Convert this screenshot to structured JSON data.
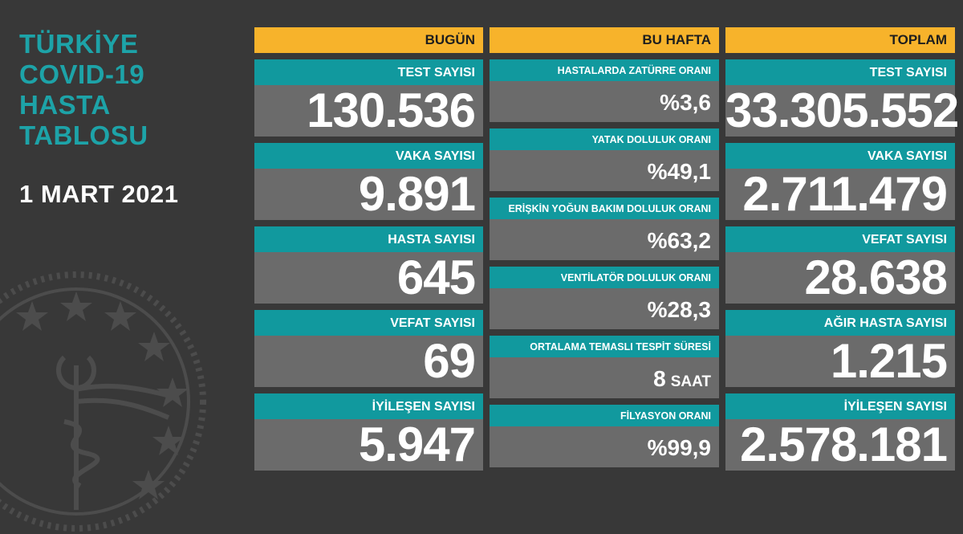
{
  "title_lines": [
    "TÜRKİYE",
    "COVID-19",
    "HASTA",
    "TABLOSU"
  ],
  "date": "1 MART 2021",
  "colors": {
    "orange": "#f7b32b",
    "teal": "#11999e",
    "title_teal": "#1da3a8",
    "panel_grey": "#6b6b6b",
    "background": "#383838"
  },
  "today": {
    "header": "BUGÜN",
    "items": [
      {
        "label": "TEST SAYISI",
        "value": "130.536"
      },
      {
        "label": "VAKA SAYISI",
        "value": "9.891"
      },
      {
        "label": "HASTA SAYISI",
        "value": "645"
      },
      {
        "label": "VEFAT SAYISI",
        "value": "69"
      },
      {
        "label": "İYİLEŞEN SAYISI",
        "value": "5.947"
      }
    ]
  },
  "week": {
    "header": "BU HAFTA",
    "items": [
      {
        "label": "HASTALARDA ZATÜRRE ORANI",
        "value": "%3,6"
      },
      {
        "label": "YATAK DOLULUK ORANI",
        "value": "%49,1"
      },
      {
        "label": "ERİŞKİN YOĞUN BAKIM DOLULUK ORANI",
        "value": "%63,2"
      },
      {
        "label": "VENTİLATÖR DOLULUK ORANI",
        "value": "%28,3"
      },
      {
        "label": "ORTALAMA TEMASLI TESPİT SÜRESİ",
        "value": "8",
        "unit": "SAAT"
      },
      {
        "label": "FİLYASYON ORANI",
        "value": "%99,9"
      }
    ]
  },
  "total": {
    "header": "TOPLAM",
    "items": [
      {
        "label": "TEST SAYISI",
        "value": "33.305.552"
      },
      {
        "label": "VAKA SAYISI",
        "value": "2.711.479"
      },
      {
        "label": "VEFAT SAYISI",
        "value": "28.638"
      },
      {
        "label": "AĞIR HASTA SAYISI",
        "value": "1.215"
      },
      {
        "label": "İYİLEŞEN SAYISI",
        "value": "2.578.181"
      }
    ]
  },
  "icons": {
    "emblem": "ministry-of-health-emblem-icon"
  }
}
